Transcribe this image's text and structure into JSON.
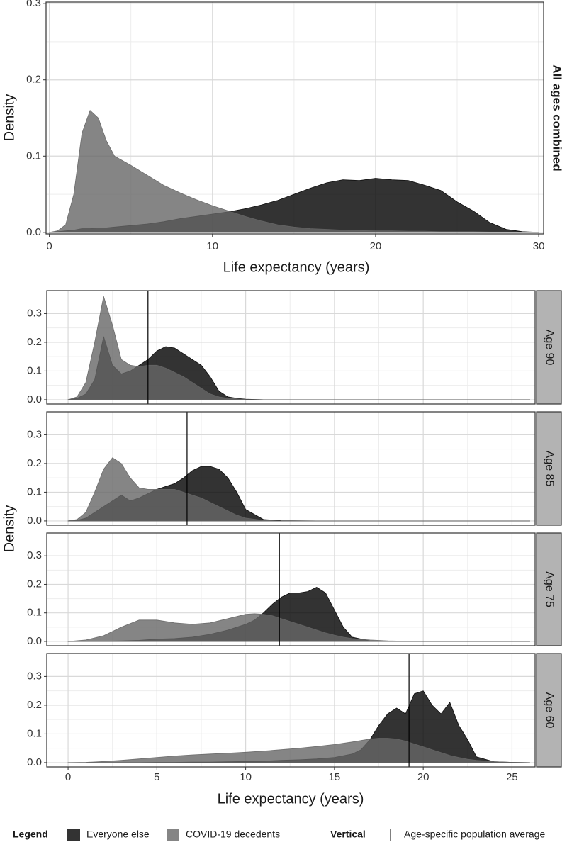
{
  "chart_data": [
    {
      "type": "area",
      "strip": "All ages combined",
      "xlabel": "Life expectancy (years)",
      "ylabel": "Density",
      "xlim": [
        -0.2,
        30.3
      ],
      "xticks": [
        0,
        10,
        20,
        30
      ],
      "ylim": [
        -0.002,
        0.302
      ],
      "yticks": [
        {
          "value": 0,
          "label": "0.0"
        },
        0.1,
        0.2,
        0.3
      ],
      "grid": true,
      "x": [
        0,
        0.5,
        1,
        1.5,
        2,
        2.5,
        3,
        3.5,
        4,
        5,
        6,
        7,
        8,
        9,
        10,
        11,
        12,
        13,
        14,
        15,
        16,
        17,
        18,
        19,
        20,
        21,
        22,
        23,
        24,
        25,
        26,
        27,
        28,
        29,
        30
      ],
      "series": [
        {
          "name": "Everyone else",
          "color": "#000000",
          "values": [
            0,
            0.001,
            0.002,
            0.003,
            0.005,
            0.005,
            0.006,
            0.006,
            0.007,
            0.009,
            0.011,
            0.014,
            0.018,
            0.021,
            0.024,
            0.027,
            0.031,
            0.036,
            0.042,
            0.05,
            0.058,
            0.065,
            0.069,
            0.068,
            0.071,
            0.069,
            0.068,
            0.062,
            0.055,
            0.04,
            0.028,
            0.013,
            0.004,
            0.001,
            0
          ]
        },
        {
          "name": "COVID-19 decedents",
          "color": "#666666",
          "values": [
            0,
            0.002,
            0.01,
            0.05,
            0.13,
            0.16,
            0.15,
            0.12,
            0.1,
            0.088,
            0.075,
            0.062,
            0.052,
            0.043,
            0.035,
            0.028,
            0.021,
            0.015,
            0.01,
            0.007,
            0.005,
            0.004,
            0.003,
            0.0025,
            0.002,
            0.002,
            0.0015,
            0.0015,
            0.001,
            0.001,
            0.001,
            0.0005,
            0.0005,
            0,
            0
          ]
        }
      ]
    },
    {
      "type": "area",
      "strip": "Age 90",
      "ylabel": "Density",
      "vline": 4.5,
      "xlim": [
        -1.2,
        26.3
      ],
      "xticks": [
        0,
        5,
        10,
        15,
        20,
        25
      ],
      "ylim": [
        -0.015,
        0.38
      ],
      "yticks": [
        {
          "value": 0,
          "label": "0.0"
        },
        0.1,
        0.2,
        0.3
      ],
      "grid": true,
      "x": [
        0,
        0.5,
        1,
        1.5,
        2,
        2.5,
        3,
        3.5,
        4,
        4.5,
        5,
        5.5,
        6,
        6.5,
        7,
        7.5,
        8,
        8.5,
        9,
        9.5,
        10,
        11,
        12,
        13,
        14,
        15,
        16,
        17,
        18,
        19,
        20,
        21,
        22,
        23,
        24,
        25,
        26
      ],
      "series": [
        {
          "color": "#000000",
          "values": [
            0,
            0.005,
            0.02,
            0.07,
            0.22,
            0.12,
            0.09,
            0.1,
            0.12,
            0.14,
            0.17,
            0.185,
            0.18,
            0.16,
            0.14,
            0.12,
            0.08,
            0.03,
            0.01,
            0.005,
            0.002,
            0,
            0,
            0,
            0,
            0,
            0,
            0,
            0,
            0,
            0,
            0,
            0,
            0,
            0,
            0,
            0
          ]
        },
        {
          "color": "#666666",
          "values": [
            0,
            0.01,
            0.06,
            0.2,
            0.36,
            0.26,
            0.14,
            0.12,
            0.115,
            0.12,
            0.12,
            0.11,
            0.095,
            0.08,
            0.06,
            0.04,
            0.02,
            0.01,
            0.005,
            0.003,
            0.001,
            0,
            0,
            0,
            0,
            0,
            0,
            0,
            0,
            0,
            0,
            0,
            0,
            0,
            0,
            0,
            0
          ]
        }
      ]
    },
    {
      "type": "area",
      "strip": "Age 85",
      "vline": 6.7,
      "xlim": [
        -1.2,
        26.3
      ],
      "xticks": [
        0,
        5,
        10,
        15,
        20,
        25
      ],
      "ylim": [
        -0.015,
        0.38
      ],
      "yticks": [
        {
          "value": 0,
          "label": "0.0"
        },
        0.1,
        0.2,
        0.3
      ],
      "grid": true,
      "x": [
        0,
        0.5,
        1,
        1.5,
        2,
        2.5,
        3,
        3.5,
        4,
        4.5,
        5,
        5.5,
        6,
        6.5,
        7,
        7.5,
        8,
        8.5,
        9,
        9.5,
        10,
        11,
        12,
        14,
        16,
        18,
        20,
        22,
        24,
        26
      ],
      "series": [
        {
          "color": "#000000",
          "values": [
            0,
            0.002,
            0.01,
            0.03,
            0.05,
            0.07,
            0.09,
            0.07,
            0.08,
            0.095,
            0.11,
            0.12,
            0.13,
            0.15,
            0.175,
            0.19,
            0.19,
            0.18,
            0.15,
            0.1,
            0.04,
            0.005,
            0.001,
            0,
            0,
            0,
            0,
            0,
            0,
            0
          ]
        },
        {
          "color": "#666666",
          "values": [
            0,
            0.005,
            0.03,
            0.1,
            0.18,
            0.22,
            0.2,
            0.15,
            0.115,
            0.11,
            0.11,
            0.11,
            0.11,
            0.1,
            0.09,
            0.08,
            0.065,
            0.05,
            0.035,
            0.02,
            0.01,
            0.002,
            0,
            0,
            0,
            0,
            0,
            0,
            0,
            0
          ]
        }
      ]
    },
    {
      "type": "area",
      "strip": "Age 75",
      "vline": 11.9,
      "xlim": [
        -1.2,
        26.3
      ],
      "xticks": [
        0,
        5,
        10,
        15,
        20,
        25
      ],
      "ylim": [
        -0.015,
        0.38
      ],
      "yticks": [
        {
          "value": 0,
          "label": "0.0"
        },
        0.1,
        0.2,
        0.3
      ],
      "grid": true,
      "x": [
        0,
        1,
        2,
        3,
        4,
        5,
        6,
        7,
        8,
        9,
        10,
        10.5,
        11,
        11.5,
        12,
        12.5,
        13,
        13.5,
        14,
        14.5,
        15,
        15.5,
        16,
        17,
        18,
        19,
        20,
        21,
        22,
        23,
        24,
        25,
        26
      ],
      "series": [
        {
          "color": "#000000",
          "values": [
            0,
            0,
            0.001,
            0.002,
            0.004,
            0.008,
            0.01,
            0.015,
            0.025,
            0.04,
            0.06,
            0.075,
            0.1,
            0.13,
            0.155,
            0.17,
            0.17,
            0.175,
            0.19,
            0.17,
            0.11,
            0.05,
            0.015,
            0.002,
            0,
            0,
            0,
            0,
            0,
            0,
            0,
            0,
            0
          ]
        },
        {
          "color": "#666666",
          "values": [
            0,
            0.005,
            0.02,
            0.05,
            0.075,
            0.075,
            0.065,
            0.06,
            0.065,
            0.08,
            0.095,
            0.097,
            0.095,
            0.09,
            0.08,
            0.07,
            0.06,
            0.05,
            0.04,
            0.03,
            0.022,
            0.015,
            0.01,
            0.005,
            0.002,
            0.001,
            0,
            0,
            0,
            0,
            0,
            0,
            0
          ]
        }
      ]
    },
    {
      "type": "area",
      "strip": "Age 60",
      "xlabel": "Life expectancy (years)",
      "vline": 19.2,
      "xlim": [
        -1.2,
        26.3
      ],
      "xticks": [
        0,
        5,
        10,
        15,
        20,
        25
      ],
      "ylim": [
        -0.015,
        0.38
      ],
      "yticks": [
        {
          "value": 0,
          "label": "0.0"
        },
        0.1,
        0.2,
        0.3
      ],
      "grid": true,
      "x": [
        0,
        1,
        2,
        3,
        4,
        5,
        6,
        7,
        8,
        9,
        10,
        11,
        12,
        13,
        14,
        15,
        16,
        16.5,
        17,
        17.5,
        18,
        18.5,
        19,
        19.5,
        20,
        20.5,
        21,
        21.5,
        22,
        22.5,
        23,
        24,
        25,
        26
      ],
      "series": [
        {
          "color": "#000000",
          "values": [
            0,
            0,
            0,
            0,
            0,
            0.001,
            0.001,
            0.002,
            0.002,
            0.003,
            0.004,
            0.005,
            0.008,
            0.01,
            0.013,
            0.018,
            0.03,
            0.045,
            0.08,
            0.13,
            0.17,
            0.19,
            0.17,
            0.24,
            0.25,
            0.2,
            0.17,
            0.21,
            0.13,
            0.08,
            0.02,
            0.003,
            0.001,
            0
          ]
        },
        {
          "color": "#666666",
          "values": [
            0,
            0.001,
            0.004,
            0.008,
            0.013,
            0.018,
            0.023,
            0.027,
            0.03,
            0.033,
            0.036,
            0.04,
            0.045,
            0.05,
            0.056,
            0.063,
            0.072,
            0.077,
            0.082,
            0.085,
            0.085,
            0.082,
            0.075,
            0.065,
            0.055,
            0.045,
            0.035,
            0.025,
            0.018,
            0.012,
            0.008,
            0.003,
            0.001,
            0
          ]
        }
      ]
    }
  ],
  "legend": {
    "title": "Legend",
    "vertical_title": "Vertical",
    "vertical_label": "Age-specific population average"
  }
}
